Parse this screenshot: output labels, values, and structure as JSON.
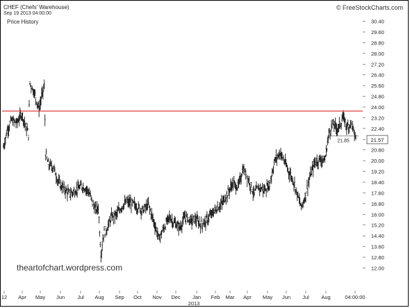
{
  "header": {
    "title": "CHEF (Chefs' Warehouse)",
    "timestamp": "Sep 19 2013 04:00:00",
    "subtitle": "Price History",
    "credit": "© FreeStockCharts.com",
    "watermark": "theartofchart.wordpress.com"
  },
  "chart_data": {
    "type": "candlestick-bar",
    "title": "CHEF (Chefs' Warehouse)",
    "subtitle": "Price History",
    "ylim": [
      12.0,
      30.4
    ],
    "y_ticks": [
      "30.40",
      "29.60",
      "28.80",
      "28.00",
      "27.20",
      "26.40",
      "25.60",
      "24.80",
      "24.00",
      "23.20",
      "22.40",
      "21.60",
      "20.80",
      "20.00",
      "19.20",
      "18.40",
      "17.60",
      "16.80",
      "16.00",
      "15.20",
      "14.40",
      "13.60",
      "12.80",
      "12.00"
    ],
    "x_ticks": [
      "12",
      "Apr",
      "May",
      "Jun",
      "Jul",
      "Aug",
      "Sep",
      "Oct",
      "Nov",
      "Dec",
      "Jan",
      "Feb",
      "Mar",
      "Apr",
      "May",
      "Jun",
      "Jul",
      "Aug",
      "04:00:00"
    ],
    "x_sub_label": "2013",
    "last_price_label": "21.57",
    "callout_label": "21.85",
    "resistance_level": 23.7,
    "series": [
      {
        "x": 0,
        "y": 21.0
      },
      {
        "x": 3,
        "y": 22.3
      },
      {
        "x": 6,
        "y": 23.0
      },
      {
        "x": 10,
        "y": 22.8
      },
      {
        "x": 14,
        "y": 23.5
      },
      {
        "x": 17,
        "y": 22.5
      },
      {
        "x": 19,
        "y": 22.0
      },
      {
        "x": 20,
        "y": 25.8
      },
      {
        "x": 23,
        "y": 25.2
      },
      {
        "x": 25,
        "y": 24.5
      },
      {
        "x": 27,
        "y": 23.8
      },
      {
        "x": 29,
        "y": 24.8
      },
      {
        "x": 31,
        "y": 25.5
      },
      {
        "x": 32,
        "y": 20.5
      },
      {
        "x": 34,
        "y": 19.7
      },
      {
        "x": 38,
        "y": 19.5
      },
      {
        "x": 42,
        "y": 18.3
      },
      {
        "x": 46,
        "y": 17.9
      },
      {
        "x": 50,
        "y": 17.5
      },
      {
        "x": 55,
        "y": 17.8
      },
      {
        "x": 60,
        "y": 18.1
      },
      {
        "x": 64,
        "y": 17.8
      },
      {
        "x": 68,
        "y": 16.8
      },
      {
        "x": 70,
        "y": 16.3
      },
      {
        "x": 72,
        "y": 16.5
      },
      {
        "x": 74,
        "y": 13.0
      },
      {
        "x": 76,
        "y": 14.5
      },
      {
        "x": 79,
        "y": 15.0
      },
      {
        "x": 82,
        "y": 15.8
      },
      {
        "x": 86,
        "y": 16.0
      },
      {
        "x": 90,
        "y": 16.6
      },
      {
        "x": 94,
        "y": 16.9
      },
      {
        "x": 98,
        "y": 16.8
      },
      {
        "x": 102,
        "y": 16.5
      },
      {
        "x": 106,
        "y": 16.3
      },
      {
        "x": 110,
        "y": 16.7
      },
      {
        "x": 114,
        "y": 15.5
      },
      {
        "x": 118,
        "y": 14.2
      },
      {
        "x": 122,
        "y": 15.0
      },
      {
        "x": 126,
        "y": 15.8
      },
      {
        "x": 130,
        "y": 15.3
      },
      {
        "x": 134,
        "y": 15.0
      },
      {
        "x": 138,
        "y": 15.8
      },
      {
        "x": 142,
        "y": 15.5
      },
      {
        "x": 146,
        "y": 15.6
      },
      {
        "x": 150,
        "y": 15.2
      },
      {
        "x": 154,
        "y": 15.5
      },
      {
        "x": 158,
        "y": 16.0
      },
      {
        "x": 162,
        "y": 16.4
      },
      {
        "x": 166,
        "y": 16.8
      },
      {
        "x": 170,
        "y": 17.5
      },
      {
        "x": 174,
        "y": 18.3
      },
      {
        "x": 178,
        "y": 18.0
      },
      {
        "x": 182,
        "y": 19.4
      },
      {
        "x": 186,
        "y": 18.6
      },
      {
        "x": 190,
        "y": 17.5
      },
      {
        "x": 194,
        "y": 18.0
      },
      {
        "x": 198,
        "y": 17.8
      },
      {
        "x": 202,
        "y": 18.2
      },
      {
        "x": 206,
        "y": 20.0
      },
      {
        "x": 210,
        "y": 20.6
      },
      {
        "x": 213,
        "y": 20.0
      },
      {
        "x": 216,
        "y": 19.3
      },
      {
        "x": 220,
        "y": 18.5
      },
      {
        "x": 224,
        "y": 17.2
      },
      {
        "x": 226,
        "y": 16.5
      },
      {
        "x": 229,
        "y": 17.3
      },
      {
        "x": 232,
        "y": 18.5
      },
      {
        "x": 236,
        "y": 19.8
      },
      {
        "x": 240,
        "y": 20.1
      },
      {
        "x": 244,
        "y": 20.0
      },
      {
        "x": 247,
        "y": 22.0
      },
      {
        "x": 250,
        "y": 22.7
      },
      {
        "x": 254,
        "y": 22.4
      },
      {
        "x": 258,
        "y": 23.2
      },
      {
        "x": 261,
        "y": 22.5
      },
      {
        "x": 264,
        "y": 22.8
      },
      {
        "x": 267,
        "y": 21.8
      },
      {
        "x": 268,
        "y": 21.6
      }
    ]
  }
}
